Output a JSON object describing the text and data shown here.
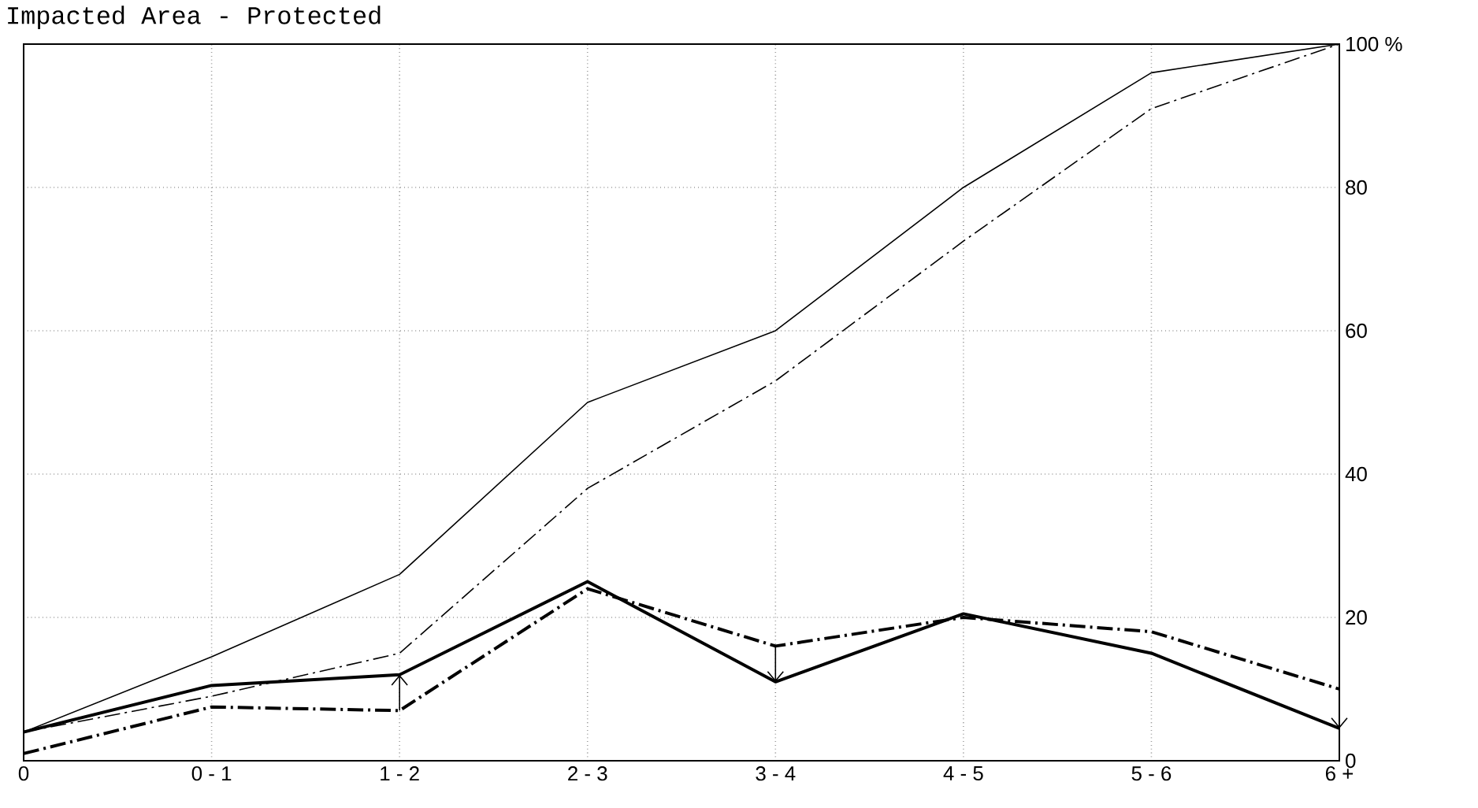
{
  "chart_data": {
    "type": "line",
    "title": "Impacted Area - Protected",
    "categories": [
      "0",
      "0 - 1",
      "1 - 2",
      "2 - 3",
      "3 - 4",
      "4 - 5",
      "5 - 6",
      "6 +"
    ],
    "series": [
      {
        "color": "#000000",
        "line_style": "solid",
        "values": [
          4,
          14.5,
          26,
          50,
          60,
          80,
          96,
          100
        ]
      },
      {
        "color": "#000000",
        "line_style": "dashed",
        "values": [
          4,
          9,
          15,
          38,
          53,
          72.5,
          91,
          100
        ]
      },
      {
        "color": "#000000",
        "line_style": "solid",
        "values": [
          4,
          10.5,
          12,
          25,
          11,
          20.5,
          15,
          4.5
        ]
      },
      {
        "color": "#000000",
        "line_style": "dashed",
        "values": [
          1,
          7.5,
          7,
          24,
          16,
          20,
          18,
          10
        ]
      }
    ],
    "ylim": [
      0,
      100
    ],
    "yticks": [
      0,
      20,
      40,
      60,
      {
        "value": 100,
        "label": "100 %"
      },
      80
    ],
    "grid": true,
    "marker": "none"
  }
}
